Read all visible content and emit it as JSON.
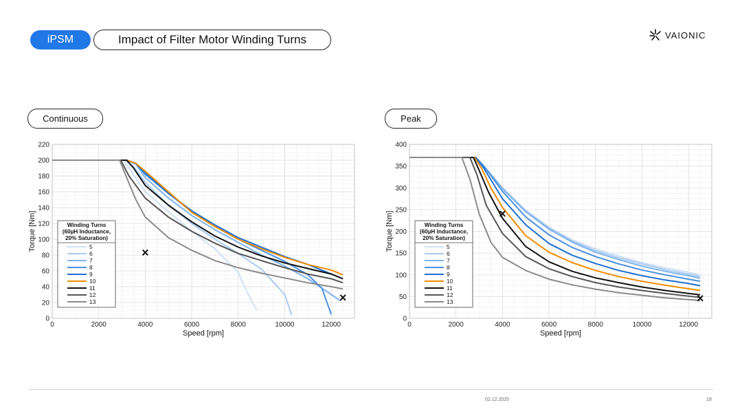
{
  "header": {
    "badge": "iPSM",
    "title": "Impact of Filter Motor Winding Turns",
    "logo_text": "VAIONIC",
    "badge_color": "#1f78e6"
  },
  "footer": {
    "date": "02.12.2025",
    "page": "19"
  },
  "chart_data": [
    {
      "type": "line",
      "tag": "Continuous",
      "xlabel": "Speed [rpm]",
      "ylabel": "Torque [Nm]",
      "xlim": [
        0,
        13000
      ],
      "ylim": [
        0,
        220
      ],
      "xticks": [
        0,
        2000,
        4000,
        6000,
        8000,
        10000,
        12000
      ],
      "yticks": [
        0,
        20,
        40,
        60,
        80,
        100,
        120,
        140,
        160,
        180,
        200,
        220
      ],
      "grid": true,
      "legend": {
        "title_lines": [
          "Winding Turns",
          "(60µH Inductance,",
          "20% Saturation)"
        ],
        "position": "lower-left"
      },
      "series": [
        {
          "name": "5",
          "color": "#cfe0f5",
          "x": [
            0,
            3050,
            3400,
            4000,
            5000,
            6000,
            7000,
            8000,
            8400,
            8800
          ],
          "y": [
            200,
            200,
            186,
            160,
            135,
            110,
            88,
            58,
            32,
            10
          ]
        },
        {
          "name": "6",
          "color": "#a8cbf2",
          "x": [
            0,
            3150,
            3500,
            4000,
            5000,
            6000,
            7000,
            8000,
            9000,
            10000,
            10300
          ],
          "y": [
            200,
            200,
            192,
            172,
            143,
            120,
            100,
            82,
            62,
            30,
            4
          ]
        },
        {
          "name": "7",
          "color": "#7db2ec",
          "x": [
            0,
            3200,
            3600,
            4000,
            5000,
            6000,
            7000,
            8000,
            9000,
            10000,
            11000,
            12000,
            12400
          ],
          "y": [
            200,
            200,
            195,
            178,
            152,
            130,
            112,
            96,
            80,
            66,
            50,
            30,
            22
          ]
        },
        {
          "name": "8",
          "color": "#4a90e2",
          "x": [
            0,
            3200,
            3600,
            4000,
            5000,
            6000,
            7000,
            8000,
            9000,
            10000,
            11000,
            11600,
            12000
          ],
          "y": [
            200,
            200,
            196,
            182,
            158,
            135,
            116,
            100,
            86,
            72,
            55,
            38,
            5
          ]
        },
        {
          "name": "9",
          "color": "#1f6fd1",
          "x": [
            0,
            3200,
            3600,
            4000,
            5000,
            6000,
            7000,
            8000,
            9000,
            10000,
            11000,
            12000,
            12500
          ],
          "y": [
            200,
            200,
            196,
            184,
            158,
            136,
            118,
            102,
            90,
            78,
            68,
            56,
            50
          ]
        },
        {
          "name": "10",
          "color": "#f08c00",
          "x": [
            0,
            3200,
            3600,
            4000,
            5000,
            6000,
            7000,
            8000,
            9000,
            10000,
            11000,
            12000,
            12500
          ],
          "y": [
            200,
            200,
            196,
            186,
            160,
            134,
            116,
            100,
            88,
            77,
            68,
            61,
            55
          ]
        },
        {
          "name": "11",
          "color": "#111111",
          "x": [
            0,
            3200,
            3500,
            4000,
            5000,
            6000,
            7000,
            8000,
            9000,
            10000,
            11000,
            12000,
            12500
          ],
          "y": [
            200,
            200,
            190,
            168,
            143,
            122,
            104,
            90,
            79,
            70,
            63,
            56,
            50
          ]
        },
        {
          "name": "12",
          "color": "#555555",
          "x": [
            0,
            2950,
            3300,
            4000,
            5000,
            6000,
            7000,
            8000,
            9000,
            10000,
            11000,
            12000,
            12500
          ],
          "y": [
            200,
            200,
            180,
            152,
            128,
            110,
            95,
            82,
            73,
            64,
            56,
            50,
            45
          ]
        },
        {
          "name": "13",
          "color": "#8a8a8a",
          "x": [
            0,
            2900,
            3200,
            3600,
            4000,
            5000,
            6000,
            7000,
            8000,
            9000,
            10000,
            11000,
            12000,
            12500
          ],
          "y": [
            200,
            200,
            178,
            150,
            128,
            102,
            86,
            73,
            64,
            57,
            51,
            45,
            40,
            37
          ]
        }
      ],
      "markers": [
        {
          "x": 4000,
          "y": 83,
          "symbol": "×"
        },
        {
          "x": 12500,
          "y": 26,
          "symbol": "×"
        }
      ]
    },
    {
      "type": "line",
      "tag": "Peak",
      "xlabel": "Speed [rpm]",
      "ylabel": "Torque [Nm]",
      "xlim": [
        0,
        13000
      ],
      "ylim": [
        0,
        400
      ],
      "xticks": [
        0,
        2000,
        4000,
        6000,
        8000,
        10000,
        12000
      ],
      "yticks": [
        0,
        50,
        100,
        150,
        200,
        250,
        300,
        350,
        400
      ],
      "grid": true,
      "legend": {
        "title_lines": [
          "Winding Turns",
          "(60µH Inductance,",
          "20% Saturation)"
        ],
        "position": "lower-left"
      },
      "series": [
        {
          "name": "5",
          "color": "#cfe0f5",
          "x": [
            0,
            2850,
            3200,
            4000,
            5000,
            6000,
            7000,
            8000,
            9000,
            10000,
            11000,
            12000,
            12500
          ],
          "y": [
            370,
            370,
            350,
            300,
            248,
            210,
            180,
            160,
            143,
            128,
            116,
            106,
            100
          ]
        },
        {
          "name": "6",
          "color": "#a8cbf2",
          "x": [
            0,
            2850,
            3200,
            4000,
            5000,
            6000,
            7000,
            8000,
            9000,
            10000,
            11000,
            12000,
            12500
          ],
          "y": [
            370,
            370,
            350,
            300,
            248,
            208,
            178,
            156,
            139,
            125,
            112,
            102,
            96
          ]
        },
        {
          "name": "7",
          "color": "#7db2ec",
          "x": [
            0,
            2850,
            3200,
            4000,
            5000,
            6000,
            7000,
            8000,
            9000,
            10000,
            11000,
            12000,
            12500
          ],
          "y": [
            370,
            370,
            350,
            298,
            245,
            205,
            175,
            152,
            135,
            120,
            108,
            98,
            92
          ]
        },
        {
          "name": "8",
          "color": "#4a90e2",
          "x": [
            0,
            2850,
            3200,
            4000,
            5000,
            6000,
            7000,
            8000,
            9000,
            10000,
            11000,
            12000,
            12500
          ],
          "y": [
            370,
            370,
            350,
            292,
            233,
            192,
            163,
            142,
            125,
            111,
            100,
            90,
            85
          ]
        },
        {
          "name": "9",
          "color": "#1f6fd1",
          "x": [
            0,
            2850,
            3200,
            4000,
            5000,
            6000,
            7000,
            8000,
            9000,
            10000,
            11000,
            12000,
            12500
          ],
          "y": [
            370,
            370,
            345,
            275,
            215,
            172,
            145,
            126,
            110,
            98,
            88,
            80,
            75
          ]
        },
        {
          "name": "10",
          "color": "#f08c00",
          "x": [
            0,
            2800,
            3100,
            3500,
            4000,
            5000,
            6000,
            7000,
            8000,
            9000,
            10000,
            11000,
            12000,
            12500
          ],
          "y": [
            370,
            370,
            345,
            300,
            255,
            190,
            152,
            128,
            110,
            96,
            85,
            76,
            68,
            64
          ]
        },
        {
          "name": "11",
          "color": "#111111",
          "x": [
            0,
            2750,
            3000,
            3400,
            4000,
            5000,
            6000,
            7000,
            8000,
            9000,
            10000,
            11000,
            12000,
            12500
          ],
          "y": [
            370,
            370,
            340,
            290,
            230,
            165,
            130,
            108,
            93,
            82,
            72,
            64,
            57,
            54
          ]
        },
        {
          "name": "12",
          "color": "#555555",
          "x": [
            0,
            2600,
            2900,
            3300,
            4000,
            5000,
            6000,
            7000,
            8000,
            9000,
            10000,
            11000,
            12000,
            12500
          ],
          "y": [
            370,
            370,
            330,
            260,
            195,
            142,
            114,
            96,
            82,
            72,
            64,
            57,
            51,
            48
          ]
        },
        {
          "name": "13",
          "color": "#8a8a8a",
          "x": [
            0,
            2250,
            2600,
            3000,
            3500,
            4000,
            5000,
            6000,
            7000,
            8000,
            9000,
            10000,
            11000,
            12000,
            12500
          ],
          "y": [
            370,
            370,
            320,
            240,
            175,
            140,
            110,
            90,
            77,
            67,
            59,
            53,
            47,
            43,
            41
          ]
        }
      ],
      "markers": [
        {
          "x": 4000,
          "y": 240,
          "symbol": "×"
        },
        {
          "x": 12500,
          "y": 46,
          "symbol": "×"
        }
      ]
    }
  ]
}
